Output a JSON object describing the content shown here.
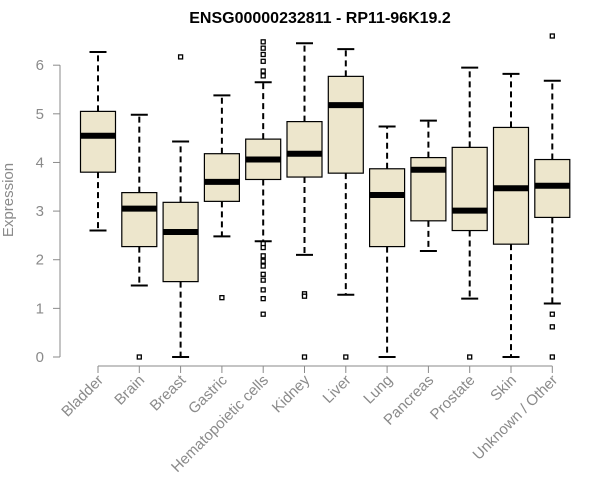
{
  "chart_data": {
    "type": "boxplot",
    "title": "ENSG00000232811 - RP11-96K19.2",
    "ylabel": "Expression",
    "xlabel": "",
    "ylim": [
      0,
      6.6
    ],
    "yticks": [
      0,
      1,
      2,
      3,
      4,
      5,
      6
    ],
    "grid": false,
    "colors": {
      "box_fill": "#ede6cc",
      "box_stroke": "#000000",
      "axis": "#8a8a8a"
    },
    "categories": [
      "Bladder",
      "Brain",
      "Breast",
      "Gastric",
      "Hematopoietic cells",
      "Kidney",
      "Liver",
      "Lung",
      "Pancreas",
      "Prostate",
      "Skin",
      "Unknown / Other"
    ],
    "boxes": [
      {
        "category": "Bladder",
        "whisker_low": 2.6,
        "q1": 3.8,
        "median": 4.55,
        "q3": 5.05,
        "whisker_high": 6.27,
        "outliers": []
      },
      {
        "category": "Brain",
        "whisker_low": 1.47,
        "q1": 2.27,
        "median": 3.05,
        "q3": 3.38,
        "whisker_high": 4.98,
        "outliers": [
          0.0
        ]
      },
      {
        "category": "Breast",
        "whisker_low": 0.0,
        "q1": 1.55,
        "median": 2.57,
        "q3": 3.18,
        "whisker_high": 4.43,
        "outliers": [
          6.17
        ]
      },
      {
        "category": "Gastric",
        "whisker_low": 2.48,
        "q1": 3.2,
        "median": 3.6,
        "q3": 4.18,
        "whisker_high": 5.38,
        "outliers": [
          1.22
        ]
      },
      {
        "category": "Hematopoietic cells",
        "whisker_low": 2.38,
        "q1": 3.65,
        "median": 4.06,
        "q3": 4.48,
        "whisker_high": 5.65,
        "outliers": [
          6.48,
          6.35,
          6.22,
          6.08,
          5.88,
          5.78,
          2.33,
          2.25,
          2.08,
          1.97,
          1.87,
          1.7,
          1.58,
          1.38,
          1.2,
          0.88
        ]
      },
      {
        "category": "Kidney",
        "whisker_low": 2.1,
        "q1": 3.7,
        "median": 4.18,
        "q3": 4.84,
        "whisker_high": 6.45,
        "outliers": [
          1.3,
          1.25,
          0.0
        ]
      },
      {
        "category": "Liver",
        "whisker_low": 1.28,
        "q1": 3.78,
        "median": 5.18,
        "q3": 5.77,
        "whisker_high": 6.33,
        "outliers": [
          0.0
        ]
      },
      {
        "category": "Lung",
        "whisker_low": 0.0,
        "q1": 2.27,
        "median": 3.33,
        "q3": 3.87,
        "whisker_high": 4.74,
        "outliers": []
      },
      {
        "category": "Pancreas",
        "whisker_low": 2.18,
        "q1": 2.8,
        "median": 3.85,
        "q3": 4.1,
        "whisker_high": 4.86,
        "outliers": []
      },
      {
        "category": "Prostate",
        "whisker_low": 1.2,
        "q1": 2.6,
        "median": 3.01,
        "q3": 4.31,
        "whisker_high": 5.95,
        "outliers": [
          0.0
        ]
      },
      {
        "category": "Skin",
        "whisker_low": 0.0,
        "q1": 2.32,
        "median": 3.47,
        "q3": 4.72,
        "whisker_high": 5.82,
        "outliers": []
      },
      {
        "category": "Unknown / Other",
        "whisker_low": 1.1,
        "q1": 2.87,
        "median": 3.52,
        "q3": 4.06,
        "whisker_high": 5.68,
        "outliers": [
          6.6,
          0.88,
          0.62,
          0.0
        ]
      }
    ]
  }
}
